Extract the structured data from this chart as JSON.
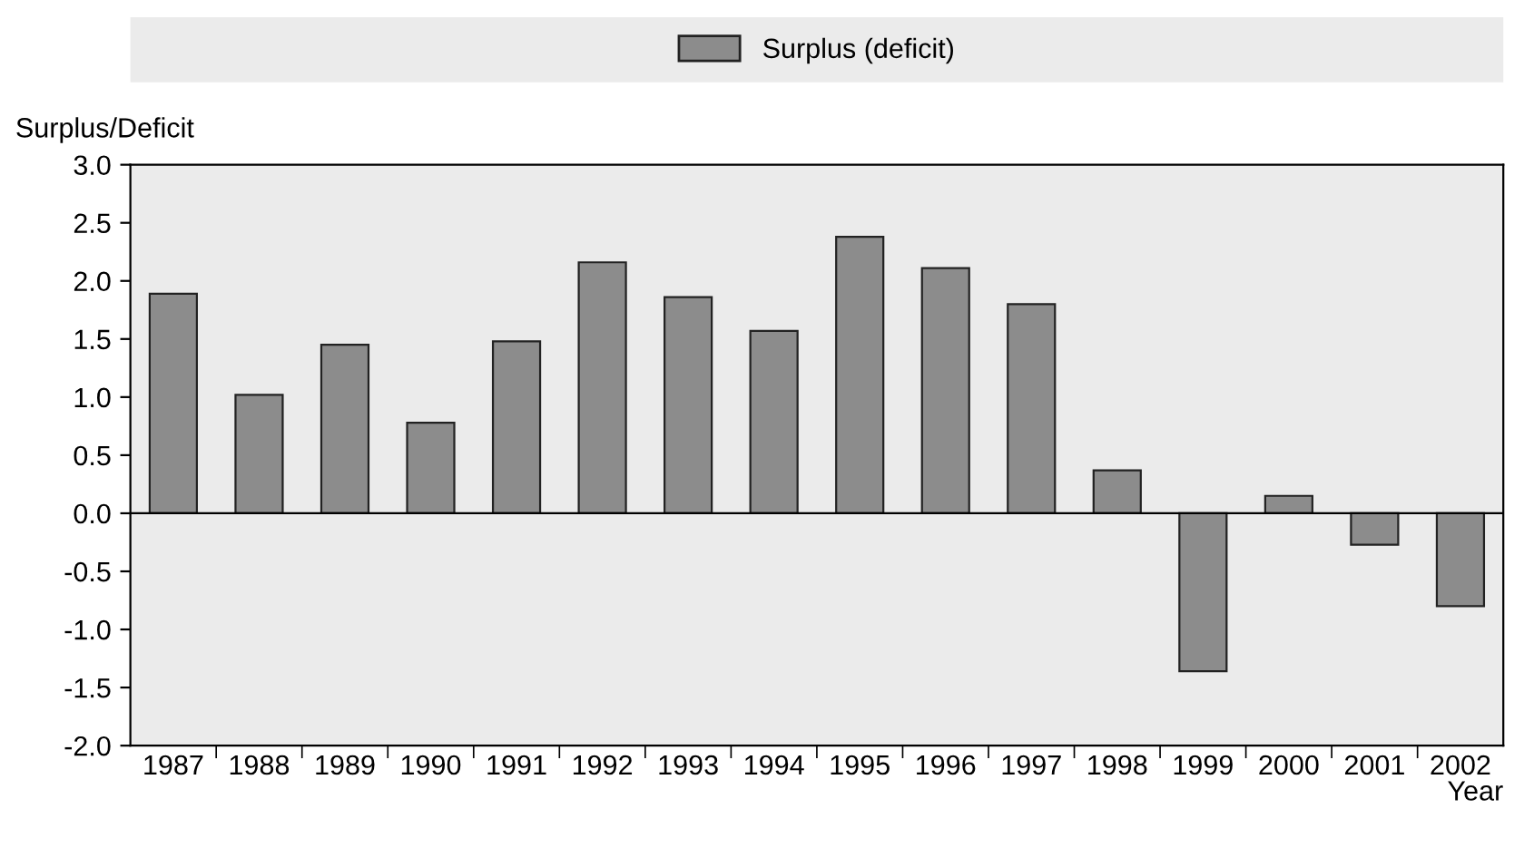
{
  "chart_data": {
    "type": "bar",
    "xlabel": "Year",
    "ylabel": "Surplus/Deficit",
    "categories": [
      "1987",
      "1988",
      "1989",
      "1990",
      "1991",
      "1992",
      "1993",
      "1994",
      "1995",
      "1996",
      "1997",
      "1998",
      "1999",
      "2000",
      "2001",
      "2002"
    ],
    "series": [
      {
        "name": "Surplus (deficit)",
        "color": "#8c8c8c",
        "values": [
          1.89,
          1.02,
          1.45,
          0.78,
          1.48,
          2.16,
          1.86,
          1.57,
          2.38,
          2.11,
          1.8,
          0.37,
          -1.36,
          0.15,
          -0.27,
          -0.8
        ]
      }
    ],
    "ylim": [
      -2.0,
      3.0
    ],
    "yticks": [
      {
        "value": -2.0,
        "label": "-2.0"
      },
      {
        "value": -1.5,
        "label": "-1.5"
      },
      {
        "value": -1.0,
        "label": "-1.0"
      },
      {
        "value": -0.5,
        "label": "-0.5"
      },
      {
        "value": 0.0,
        "label": "0.0"
      },
      {
        "value": 0.5,
        "label": "0.5"
      },
      {
        "value": 1.0,
        "label": "1.0"
      },
      {
        "value": 1.5,
        "label": "1.5"
      },
      {
        "value": 2.0,
        "label": "2.0"
      },
      {
        "value": 2.5,
        "label": "2.5"
      },
      {
        "value": 3.0,
        "label": "3.0"
      }
    ],
    "legend": "top"
  }
}
